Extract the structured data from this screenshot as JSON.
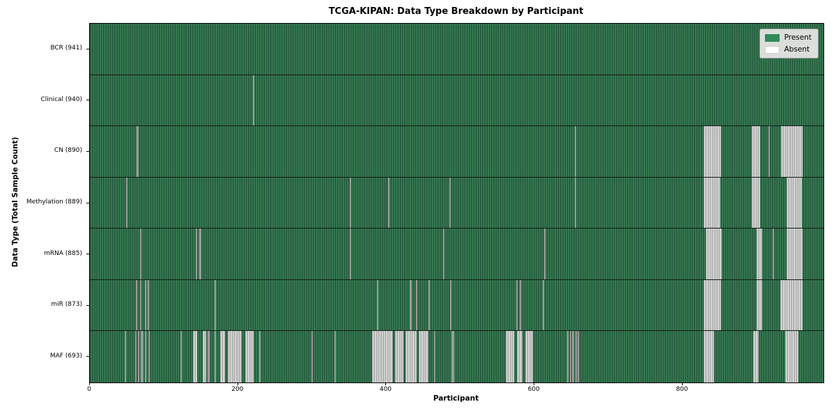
{
  "chart_data": {
    "type": "heatmap",
    "title": "TCGA-KIPAN: Data Type Breakdown by Participant",
    "xlabel": "Participant",
    "ylabel": "Data Type (Total Sample Count)",
    "x_ticks": [
      0,
      200,
      400,
      600,
      800
    ],
    "x_max": 990,
    "grid": false,
    "legend_position": "upper right",
    "legend": [
      {
        "label": "Present",
        "color": "#2e8b57"
      },
      {
        "label": "Absent",
        "color": "#ffffff"
      }
    ],
    "colors": {
      "present": "#2e8b57",
      "present_texture_dark": "#1f5136",
      "absent_stripe": "#9c9c9c",
      "absent_block": "#d0d0d0",
      "row_divider": "#101c14",
      "legend_background": "#dbdedb"
    },
    "rows": [
      {
        "label": "BCR (941)",
        "data_type": "BCR",
        "sample_count": 941,
        "absent_ranges": []
      },
      {
        "label": "Clinical (940)",
        "data_type": "Clinical",
        "sample_count": 940,
        "absent_ranges": [
          [
            220,
            222
          ]
        ]
      },
      {
        "label": "CN (890)",
        "data_type": "CN",
        "sample_count": 890,
        "absent_ranges": [
          [
            63,
            66
          ],
          [
            654,
            656
          ],
          [
            828,
            852
          ],
          [
            893,
            904
          ],
          [
            916,
            918
          ],
          [
            933,
            962
          ]
        ]
      },
      {
        "label": "Methylation (889)",
        "data_type": "Methylation",
        "sample_count": 889,
        "absent_ranges": [
          [
            49,
            51
          ],
          [
            351,
            353
          ],
          [
            402,
            404
          ],
          [
            485,
            487
          ],
          [
            654,
            656
          ],
          [
            828,
            851
          ],
          [
            893,
            904
          ],
          [
            940,
            961
          ]
        ]
      },
      {
        "label": "mRNA (885)",
        "data_type": "mRNA",
        "sample_count": 885,
        "absent_ranges": [
          [
            68,
            70
          ],
          [
            143,
            145
          ],
          [
            148,
            150
          ],
          [
            351,
            353
          ],
          [
            477,
            479
          ],
          [
            613,
            615
          ],
          [
            831,
            853
          ],
          [
            900,
            907
          ],
          [
            921,
            923
          ],
          [
            940,
            962
          ]
        ]
      },
      {
        "label": "miR (873)",
        "data_type": "miR",
        "sample_count": 873,
        "absent_ranges": [
          [
            62,
            64
          ],
          [
            68,
            70
          ],
          [
            74,
            76
          ],
          [
            78,
            80
          ],
          [
            168,
            170
          ],
          [
            387,
            389
          ],
          [
            432,
            434
          ],
          [
            440,
            442
          ],
          [
            457,
            459
          ],
          [
            486,
            488
          ],
          [
            575,
            577
          ],
          [
            580,
            582
          ],
          [
            611,
            613
          ],
          [
            828,
            852
          ],
          [
            900,
            907
          ],
          [
            932,
            962
          ]
        ]
      },
      {
        "label": "MAF (693)",
        "data_type": "MAF",
        "sample_count": 693,
        "absent_ranges": [
          [
            47,
            49
          ],
          [
            61,
            63
          ],
          [
            65,
            67
          ],
          [
            69,
            72
          ],
          [
            74,
            76
          ],
          [
            79,
            81
          ],
          [
            122,
            124
          ],
          [
            139,
            145
          ],
          [
            152,
            157
          ],
          [
            159,
            162
          ],
          [
            168,
            170
          ],
          [
            176,
            182
          ],
          [
            186,
            205
          ],
          [
            210,
            221
          ],
          [
            228,
            230
          ],
          [
            299,
            301
          ],
          [
            330,
            332
          ],
          [
            381,
            409
          ],
          [
            412,
            423
          ],
          [
            426,
            441
          ],
          [
            444,
            457
          ],
          [
            464,
            466
          ],
          [
            488,
            492
          ],
          [
            561,
            573
          ],
          [
            576,
            584
          ],
          [
            588,
            598
          ],
          [
            644,
            646
          ],
          [
            648,
            650
          ],
          [
            651,
            653
          ],
          [
            655,
            657
          ],
          [
            658,
            660
          ],
          [
            828,
            842
          ],
          [
            895,
            903
          ],
          [
            938,
            956
          ]
        ]
      }
    ]
  }
}
